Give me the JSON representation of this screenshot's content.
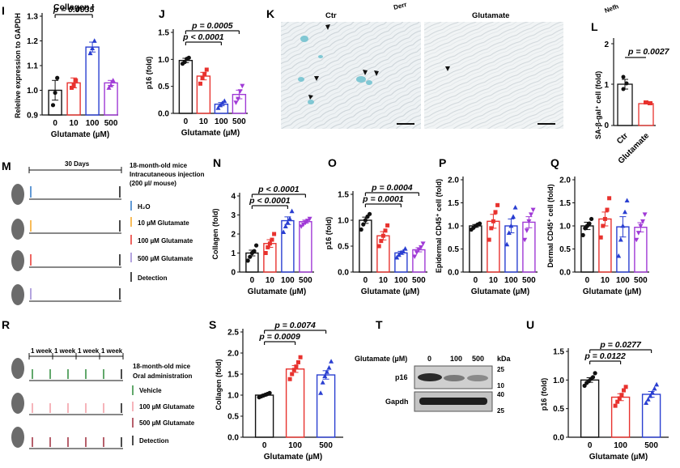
{
  "palette": {
    "black": "#111111",
    "red": "#e8322e",
    "blue": "#2a3fd1",
    "purple": "#a03ad6",
    "pink": "#f39aa2",
    "maroon": "#9e2a3a",
    "green": "#2e8a3a",
    "orange": "#f5a623",
    "lilac": "#9a86d4",
    "arrowblue": "#2d79c7"
  },
  "labels": {
    "I": "I",
    "J": "J",
    "K": "K",
    "L": "L",
    "M": "M",
    "N": "N",
    "O": "O",
    "P": "P",
    "Q": "Q",
    "R": "R",
    "S": "S",
    "T": "T",
    "U": "U"
  },
  "micro": {
    "ctr": "Ctr",
    "glutamate": "Glutamate",
    "cut1": "Derr",
    "cut2": "Nefh",
    "l_ylabel": "SA-β-gal⁺ cell (fold)",
    "l_cats": [
      "Ctr",
      "Glutamate"
    ],
    "l_p": "p = 0.0027"
  },
  "schemeM": {
    "days": "30 Days",
    "title": [
      "18-month-old mice",
      "Intracutaneous injection",
      "(200 µl/ mouse)"
    ],
    "legend": [
      "H₂O",
      "10 µM Glutamate",
      "100 µM Glutamate",
      "500 µM Glutamate",
      "Detection"
    ]
  },
  "schemeR": {
    "weeks": [
      "1 week",
      "1 week",
      "1 week",
      "1 week"
    ],
    "title": [
      "18-month-old mice",
      "Oral administration"
    ],
    "legend": [
      "Vehicle",
      "100 µM Glutamate",
      "500 µM Glutamate",
      "Detection"
    ]
  },
  "blot": {
    "header": "Glutamate (µM)",
    "lanes": [
      "0",
      "100",
      "500"
    ],
    "kda": "kDa",
    "rows": [
      "p16",
      "Gapdh"
    ],
    "markers": [
      "25",
      "10",
      "40",
      "25"
    ]
  },
  "chart_data": [
    {
      "panel": "I",
      "type": "bar",
      "title": "Collagen I",
      "ylabel": "Relelive expression to GAPDH",
      "xlabel": "Glutamate (µM)",
      "categories": [
        "0",
        "10",
        "100",
        "500"
      ],
      "values": [
        1.0,
        1.03,
        1.175,
        1.03
      ],
      "points": [
        [
          0.94,
          0.99,
          1.05
        ],
        [
          1.01,
          1.02,
          1.04
        ],
        [
          1.15,
          1.17,
          1.2
        ],
        [
          1.01,
          1.02,
          1.04
        ]
      ],
      "err": [
        0.04,
        0.02,
        0.02,
        0.01
      ],
      "ylim": [
        0.9,
        1.3
      ],
      "yticks": [
        "0.9",
        "1.0",
        "1.1",
        "1.2",
        "1.3"
      ],
      "sig": [
        {
          "a": 0,
          "b": 2,
          "label": "p = 0.0035"
        }
      ]
    },
    {
      "panel": "J",
      "type": "bar",
      "ylabel": "p16 (fold)",
      "xlabel": "Glutamate (µM)",
      "categories": [
        "0",
        "10",
        "100",
        "500"
      ],
      "values": [
        0.98,
        0.69,
        0.17,
        0.35
      ],
      "points": [
        [
          0.92,
          0.95,
          1.01,
          1.03
        ],
        [
          0.55,
          0.66,
          0.73,
          0.81
        ],
        [
          0.1,
          0.15,
          0.19,
          0.23
        ],
        [
          0.2,
          0.27,
          0.41,
          0.51
        ]
      ],
      "err": [
        0.04,
        0.07,
        0.03,
        0.08
      ],
      "ylim": [
        0,
        1.5
      ],
      "yticks": [
        "0.0",
        "0.5",
        "1.0",
        "1.5"
      ],
      "sig": [
        {
          "a": 0,
          "b": 2,
          "label": "p < 0.0001"
        },
        {
          "a": 0,
          "b": 3,
          "label": "p = 0.0005"
        }
      ]
    },
    {
      "panel": "N",
      "type": "bar",
      "ylabel": "Collagen (fold)",
      "xlabel": "Glutamate (µM)",
      "categories": [
        "0",
        "10",
        "100",
        "500"
      ],
      "values": [
        1.0,
        1.5,
        2.7,
        2.65
      ],
      "points": [
        [
          0.6,
          0.8,
          1.0,
          1.1,
          1.4
        ],
        [
          1.0,
          1.3,
          1.5,
          1.7,
          2.0
        ],
        [
          2.1,
          2.4,
          2.6,
          2.8,
          3.2
        ],
        [
          2.4,
          2.5,
          2.6,
          2.7,
          2.8
        ]
      ],
      "err": [
        0.15,
        0.2,
        0.2,
        0.08
      ],
      "ylim": [
        0,
        4
      ],
      "yticks": [
        "0",
        "1",
        "2",
        "3",
        "4"
      ],
      "sig": [
        {
          "a": 0,
          "b": 2,
          "label": "p < 0.0001"
        },
        {
          "a": 0,
          "b": 3,
          "label": "p < 0.0001"
        }
      ]
    },
    {
      "panel": "O",
      "type": "bar",
      "ylabel": "p16 (fold)",
      "xlabel": "Glutamate (µM)",
      "categories": [
        "0",
        "10",
        "100",
        "500"
      ],
      "values": [
        1.0,
        0.7,
        0.37,
        0.43
      ],
      "points": [
        [
          0.82,
          0.92,
          1.0,
          1.07,
          1.12
        ],
        [
          0.5,
          0.6,
          0.7,
          0.8,
          0.9
        ],
        [
          0.28,
          0.33,
          0.38,
          0.4,
          0.45
        ],
        [
          0.3,
          0.38,
          0.44,
          0.48,
          0.55
        ]
      ],
      "err": [
        0.06,
        0.08,
        0.03,
        0.04
      ],
      "ylim": [
        0,
        1.5
      ],
      "yticks": [
        "0.0",
        "0.5",
        "1.0",
        "1.5"
      ],
      "sig": [
        {
          "a": 0,
          "b": 2,
          "label": "p = 0.0001"
        },
        {
          "a": 0,
          "b": 3,
          "label": "p = 0.0004"
        }
      ]
    },
    {
      "panel": "P",
      "type": "bar",
      "ylabel": "Epidermal CD45⁺ cell (fold)",
      "xlabel": "Glutamate (µM)",
      "categories": [
        "0",
        "10",
        "100",
        "500"
      ],
      "values": [
        1.0,
        1.1,
        1.0,
        1.08
      ],
      "points": [
        [
          0.92,
          0.96,
          1.0,
          1.03,
          1.05
        ],
        [
          0.7,
          0.95,
          1.1,
          1.3,
          1.45
        ],
        [
          0.6,
          0.85,
          1.0,
          1.2,
          1.4
        ],
        [
          0.7,
          0.9,
          1.1,
          1.25,
          1.35
        ]
      ],
      "err": [
        0.03,
        0.15,
        0.15,
        0.12
      ],
      "ylim": [
        0,
        2
      ],
      "yticks": [
        "0.0",
        "0.5",
        "1.0",
        "1.5",
        "2.0"
      ],
      "sig": []
    },
    {
      "panel": "Q",
      "type": "bar",
      "ylabel": "Dermal CD45⁺ cell (fold)",
      "xlabel": "Glutamate (µM)",
      "categories": [
        "0",
        "10",
        "100",
        "500"
      ],
      "values": [
        1.0,
        1.15,
        0.98,
        0.97
      ],
      "points": [
        [
          0.8,
          0.95,
          1.0,
          1.05,
          1.15
        ],
        [
          0.75,
          1.0,
          1.15,
          1.35,
          1.6
        ],
        [
          0.35,
          0.7,
          1.0,
          1.3,
          1.55
        ],
        [
          0.7,
          0.85,
          1.0,
          1.1,
          1.25
        ]
      ],
      "err": [
        0.08,
        0.15,
        0.22,
        0.1
      ],
      "ylim": [
        0,
        2
      ],
      "yticks": [
        "0.0",
        "0.5",
        "1.0",
        "1.5",
        "2.0"
      ],
      "sig": []
    },
    {
      "panel": "S",
      "type": "bar",
      "ylabel": "Collagen (fold)",
      "xlabel": "Glutamate (µM)",
      "categories": [
        "0",
        "100",
        "500"
      ],
      "values": [
        1.0,
        1.62,
        1.48
      ],
      "points": [
        [
          0.95,
          0.97,
          0.99,
          1.01,
          1.03,
          1.05
        ],
        [
          1.38,
          1.5,
          1.6,
          1.68,
          1.78,
          1.9
        ],
        [
          1.05,
          1.3,
          1.45,
          1.55,
          1.65,
          1.8
        ]
      ],
      "err": [
        0.02,
        0.08,
        0.1
      ],
      "ylim": [
        0,
        2.5
      ],
      "yticks": [
        "0.0",
        "0.5",
        "1.0",
        "1.5",
        "2.0",
        "2.5"
      ],
      "sig": [
        {
          "a": 0,
          "b": 1,
          "label": "p = 0.0009"
        },
        {
          "a": 0,
          "b": 2,
          "label": "p = 0.0074"
        }
      ]
    },
    {
      "panel": "U",
      "type": "bar",
      "ylabel": "p16 (fold)",
      "xlabel": "Glutamate (µM)",
      "categories": [
        "0",
        "100",
        "500"
      ],
      "values": [
        1.0,
        0.7,
        0.75
      ],
      "points": [
        [
          0.9,
          0.95,
          0.98,
          1.02,
          1.05,
          1.12
        ],
        [
          0.55,
          0.62,
          0.68,
          0.74,
          0.82,
          0.88
        ],
        [
          0.6,
          0.66,
          0.72,
          0.78,
          0.85,
          0.92
        ]
      ],
      "err": [
        0.04,
        0.06,
        0.05
      ],
      "ylim": [
        0,
        1.5
      ],
      "yticks": [
        "0.0",
        "0.5",
        "1.0",
        "1.5"
      ],
      "sig": [
        {
          "a": 0,
          "b": 1,
          "label": "p = 0.0122"
        },
        {
          "a": 0,
          "b": 2,
          "label": "p = 0.0277"
        }
      ]
    }
  ]
}
